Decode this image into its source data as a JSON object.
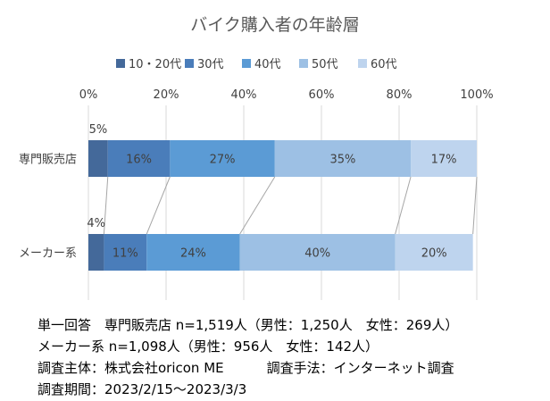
{
  "chart_data": {
    "type": "bar",
    "stacked": "percent",
    "orientation": "horizontal",
    "title": "バイク購入者の年齢層",
    "categories": [
      "専門販売店",
      "メーカー系"
    ],
    "series": [
      {
        "name": "10・20代",
        "values": [
          5,
          4
        ],
        "labels": [
          "5%",
          "4%"
        ],
        "color": "#44699A"
      },
      {
        "name": "30代",
        "values": [
          16,
          11
        ],
        "labels": [
          "16%",
          "11%"
        ],
        "color": "#4A7DBA"
      },
      {
        "name": "40代",
        "values": [
          27,
          24
        ],
        "labels": [
          "27%",
          "24%"
        ],
        "color": "#5B9BD5"
      },
      {
        "name": "50代",
        "values": [
          35,
          40
        ],
        "labels": [
          "35%",
          "40%"
        ],
        "color": "#9DC0E4"
      },
      {
        "name": "60代",
        "values": [
          17,
          20
        ],
        "labels": [
          "17%",
          "20%"
        ],
        "color": "#BED4EE"
      }
    ],
    "x_ticks": [
      "0%",
      "20%",
      "40%",
      "60%",
      "80%",
      "100%"
    ],
    "xlim": [
      0,
      100
    ],
    "legend": "top",
    "grid": true,
    "series_lines": true
  },
  "notes": {
    "line1": "単一回答　専門販売店 n=1,519人（男性：1,250人　女性：269人）",
    "line2": "メーカー系 n=1,098人（男性：956人　女性：142人）",
    "line3a": "調査主体：株式会社oricon ME",
    "line3b": "調査手法：インターネット調査",
    "line4": "調査期間：2023/2/15～2023/3/3"
  }
}
